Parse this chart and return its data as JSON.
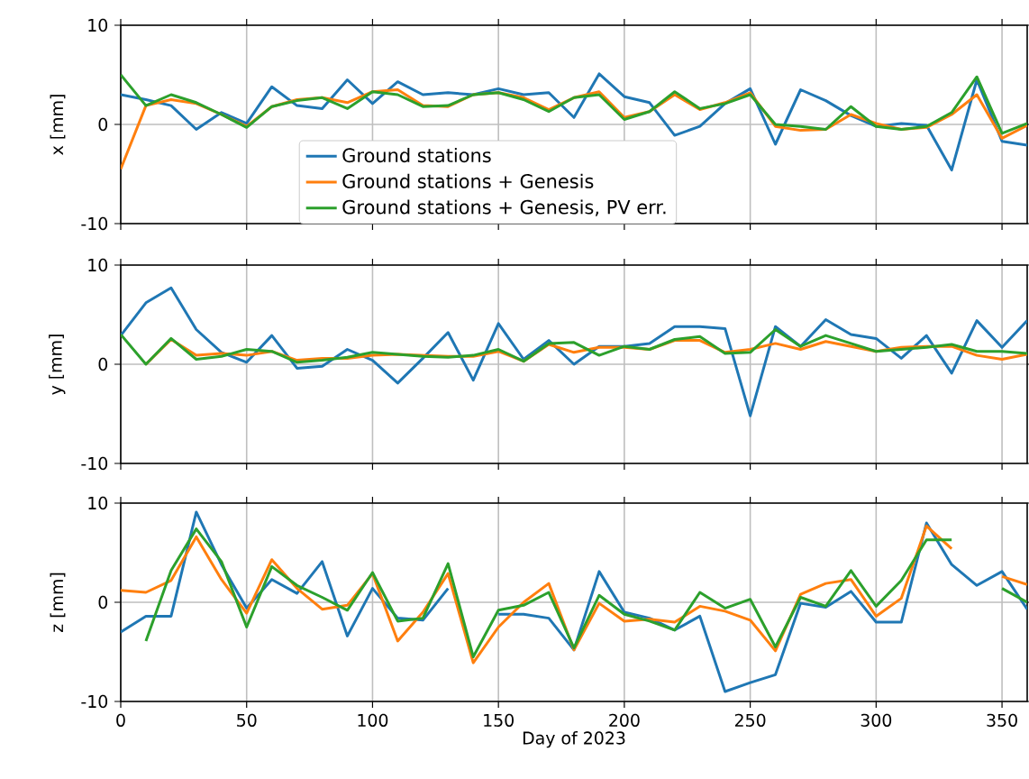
{
  "chart_data": [
    {
      "type": "line",
      "ylabel": "x [mm]",
      "x": [
        0,
        10,
        20,
        30,
        40,
        50,
        60,
        70,
        80,
        90,
        100,
        110,
        120,
        130,
        140,
        150,
        160,
        170,
        180,
        190,
        200,
        210,
        220,
        230,
        240,
        250,
        260,
        270,
        280,
        290,
        300,
        310,
        320,
        330,
        340,
        350,
        360
      ],
      "xlim": [
        0,
        360
      ],
      "xticks": [
        0,
        50,
        100,
        150,
        200,
        250,
        300,
        350
      ],
      "ylim": [
        -10,
        10
      ],
      "yticks": [
        -10,
        0,
        10
      ],
      "tick_labels": "y",
      "grid": true,
      "legend": "bottom",
      "series": [
        {
          "name": "Ground stations",
          "color": "#1f77b4",
          "values": [
            3.0,
            2.5,
            1.9,
            -0.5,
            1.2,
            0.1,
            3.8,
            1.9,
            1.6,
            4.5,
            2.1,
            4.3,
            3.0,
            3.2,
            3.0,
            3.6,
            3.0,
            3.2,
            0.7,
            5.1,
            2.8,
            2.2,
            -1.1,
            -0.2,
            2.1,
            3.6,
            -2.0,
            3.5,
            2.4,
            0.9,
            -0.2,
            0.1,
            -0.1,
            -4.6,
            4.5,
            -1.7,
            -2.1
          ]
        },
        {
          "name": "Ground stations + Genesis",
          "color": "#ff7f0e",
          "values": [
            -4.5,
            1.9,
            2.5,
            2.1,
            1.0,
            -0.2,
            1.8,
            2.5,
            2.7,
            2.2,
            3.3,
            3.5,
            1.9,
            1.8,
            3.0,
            3.2,
            2.7,
            1.5,
            2.7,
            3.3,
            0.7,
            1.3,
            3.0,
            1.5,
            2.2,
            3.2,
            -0.2,
            -0.6,
            -0.5,
            1.0,
            0.1,
            -0.5,
            -0.3,
            1.0,
            3.0,
            -1.4,
            -0.1
          ]
        },
        {
          "name": "Ground stations + Genesis, PV err.",
          "color": "#2ca02c",
          "values": [
            5.0,
            1.9,
            3.0,
            2.2,
            1.0,
            -0.3,
            1.8,
            2.4,
            2.7,
            1.6,
            3.3,
            3.0,
            1.8,
            1.9,
            3.0,
            3.2,
            2.5,
            1.3,
            2.7,
            3.0,
            0.5,
            1.3,
            3.3,
            1.6,
            2.1,
            3.0,
            0,
            -0.2,
            -0.5,
            1.8,
            -0.2,
            -0.5,
            -0.2,
            1.2,
            4.8,
            -0.9,
            0.1
          ]
        }
      ]
    },
    {
      "type": "line",
      "ylabel": "y [mm]",
      "x": [
        0,
        10,
        20,
        30,
        40,
        50,
        60,
        70,
        80,
        90,
        100,
        110,
        120,
        130,
        140,
        150,
        160,
        170,
        180,
        190,
        200,
        210,
        220,
        230,
        240,
        250,
        260,
        270,
        280,
        290,
        300,
        310,
        320,
        330,
        340,
        350,
        360
      ],
      "xlim": [
        0,
        360
      ],
      "xticks": [
        0,
        50,
        100,
        150,
        200,
        250,
        300,
        350
      ],
      "ylim": [
        -10,
        10
      ],
      "yticks": [
        -10,
        0,
        10
      ],
      "tick_labels": "y",
      "grid": true,
      "series": [
        {
          "color": "#1f77b4",
          "values": [
            2.9,
            6.2,
            7.7,
            3.5,
            1.2,
            0.2,
            2.9,
            -0.4,
            -0.2,
            1.5,
            0.4,
            -1.9,
            0.6,
            3.2,
            -1.6,
            4.1,
            0.5,
            2.4,
            0,
            1.8,
            1.8,
            2.1,
            3.8,
            3.8,
            3.6,
            -5.2,
            3.8,
            1.8,
            4.5,
            3.0,
            2.6,
            0.6,
            2.9,
            -0.9,
            4.4,
            1.7,
            4.4
          ]
        },
        {
          "color": "#ff7f0e",
          "values": [
            null,
            0,
            2.5,
            0.9,
            1.1,
            0.9,
            1.3,
            0.4,
            0.6,
            0.6,
            0.9,
            1.0,
            0.9,
            0.8,
            0.8,
            1.3,
            0.3,
            2.0,
            1.2,
            1.7,
            1.7,
            1.5,
            2.4,
            2.4,
            1.2,
            1.5,
            2.1,
            1.5,
            2.3,
            1.8,
            1.3,
            1.7,
            1.8,
            1.8,
            0.9,
            0.5,
            1.0
          ]
        },
        {
          "color": "#2ca02c",
          "values": [
            3.0,
            0,
            2.6,
            0.5,
            0.8,
            1.5,
            1.3,
            0.2,
            0.4,
            0.7,
            1.2,
            1.0,
            0.8,
            0.7,
            0.9,
            1.5,
            0.3,
            2.1,
            2.2,
            0.9,
            1.8,
            1.5,
            2.5,
            2.8,
            1.1,
            1.2,
            3.5,
            1.8,
            2.9,
            2.1,
            1.3,
            1.5,
            1.7,
            2.0,
            1.3,
            1.3,
            1.1
          ]
        }
      ]
    },
    {
      "type": "line",
      "ylabel": "z [mm]",
      "xlabel": "Day of 2023",
      "x": [
        0,
        10,
        20,
        30,
        40,
        50,
        60,
        70,
        80,
        90,
        100,
        110,
        120,
        130,
        140,
        150,
        160,
        170,
        180,
        190,
        200,
        210,
        220,
        230,
        240,
        250,
        260,
        270,
        280,
        290,
        300,
        310,
        320,
        330,
        340,
        350,
        360
      ],
      "xlim": [
        0,
        360
      ],
      "xticks": [
        0,
        50,
        100,
        150,
        200,
        250,
        300,
        350
      ],
      "ylim": [
        -10,
        10
      ],
      "yticks": [
        -10,
        0,
        10
      ],
      "grid": true,
      "series": [
        {
          "color": "#1f77b4",
          "values": [
            -3.0,
            -1.4,
            -1.4,
            9.1,
            3.8,
            -0.6,
            2.3,
            0.9,
            4.1,
            -3.4,
            1.4,
            -1.6,
            -1.8,
            1.4,
            null,
            -1.2,
            -1.2,
            -1.6,
            -4.8,
            3.1,
            -1.0,
            -1.6,
            -2.8,
            -1.4,
            -9.0,
            -8.1,
            -7.3,
            -0.1,
            -0.5,
            1.1,
            -2.0,
            -2.0,
            8.0,
            3.8,
            1.7,
            3.1,
            -0.7
          ]
        },
        {
          "color": "#ff7f0e",
          "values": [
            1.2,
            1.0,
            2.2,
            6.6,
            2.3,
            -1.1,
            4.3,
            1.4,
            -0.7,
            -0.3,
            2.9,
            -3.9,
            -1.0,
            2.9,
            -6.1,
            -2.5,
            0,
            1.9,
            -4.8,
            -0.1,
            -1.9,
            -1.7,
            -2.0,
            -0.4,
            -0.9,
            -1.8,
            -4.9,
            0.8,
            1.9,
            2.3,
            -1.4,
            0.4,
            7.7,
            5.4,
            null,
            2.6,
            1.8
          ]
        },
        {
          "color": "#2ca02c",
          "values": [
            null,
            -3.9,
            3.2,
            7.4,
            4.1,
            -2.5,
            3.6,
            1.7,
            0.5,
            -0.8,
            3.0,
            -1.9,
            -1.6,
            3.9,
            -5.5,
            -0.8,
            -0.3,
            1.0,
            -4.6,
            0.7,
            -1.2,
            -1.9,
            -2.8,
            1.0,
            -0.6,
            0.3,
            -4.5,
            0.5,
            -0.4,
            3.2,
            -0.4,
            2.2,
            6.3,
            6.3,
            null,
            1.4,
            0
          ]
        }
      ]
    }
  ]
}
